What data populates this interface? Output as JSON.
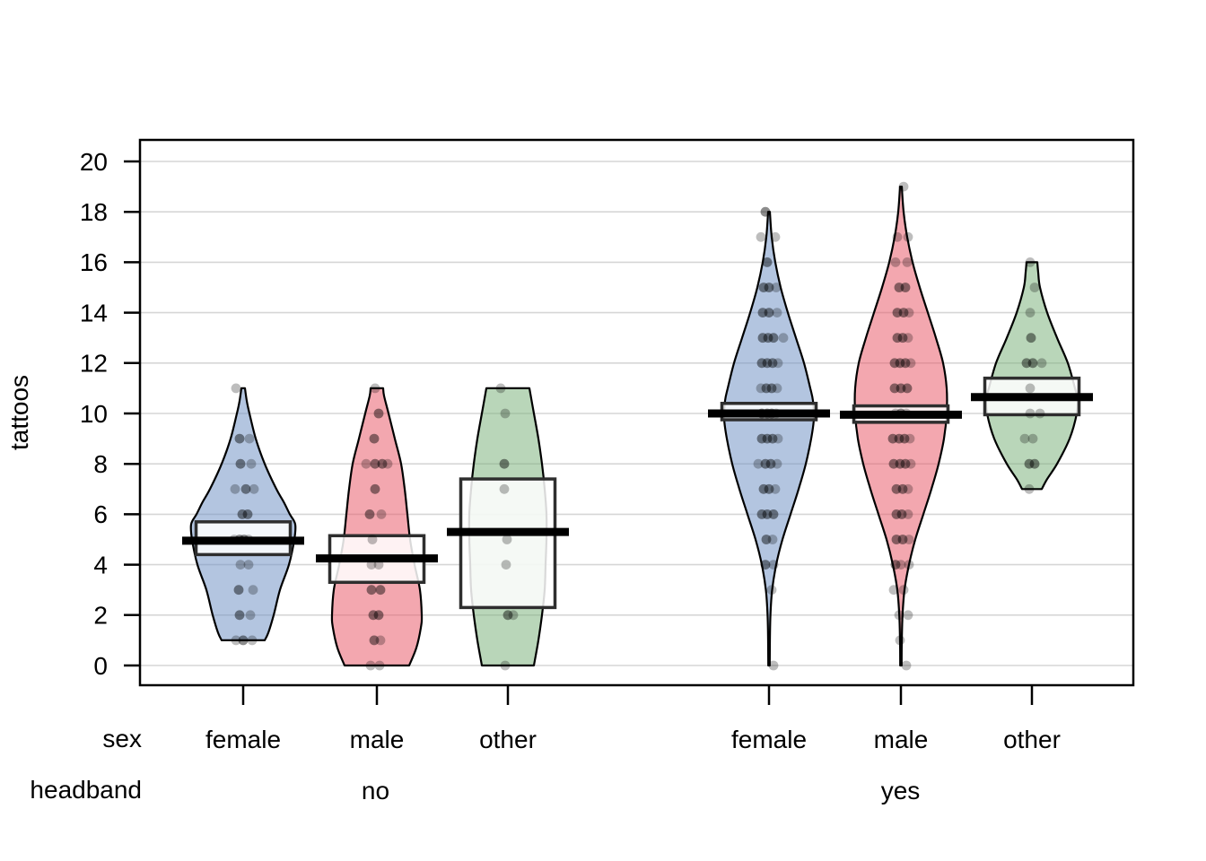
{
  "ylabel": "tattoos",
  "x_axis": {
    "row1_label": "sex",
    "row2_label": "headband",
    "group_labels": [
      "no",
      "yes"
    ]
  },
  "axis": {
    "ylim": [
      0,
      20
    ],
    "yticks": [
      0,
      2,
      4,
      6,
      8,
      10,
      12,
      14,
      16,
      18,
      20
    ],
    "grid": true
  },
  "colors": {
    "blue": "#7496c6",
    "red": "#ea5f6d",
    "green": "#7fb47f",
    "violin_fill_opacity": 0.55,
    "gridline": "#d6d6d6",
    "box_fill": "#ffffff",
    "box_fill_opacity": 0.85,
    "box_border": "#2e2e2e",
    "mean_line": "#000000",
    "point": "#000000",
    "axis": "#000000"
  },
  "chart_data": {
    "type": "violin",
    "subtype": "pirateplot: violin + jittered points + inference box + mean line",
    "title": "",
    "ylabel": "tattoos",
    "ylim": [
      0,
      20
    ],
    "yticks": [
      0,
      2,
      4,
      6,
      8,
      10,
      12,
      14,
      16,
      18,
      20
    ],
    "facet_rows": [
      "sex",
      "headband"
    ],
    "legend": "none",
    "groups": [
      {
        "headband": "no",
        "sex": "female",
        "color_key": "blue",
        "mean": 4.95,
        "inference_box": [
          4.4,
          5.7
        ],
        "data_range": [
          1,
          11
        ],
        "violin_profile": [
          [
            1,
            24
          ],
          [
            1.3,
            28
          ],
          [
            2,
            34
          ],
          [
            3,
            41
          ],
          [
            4,
            51
          ],
          [
            5,
            57
          ],
          [
            5.6,
            58
          ],
          [
            6,
            52
          ],
          [
            6.5,
            45
          ],
          [
            7,
            37
          ],
          [
            8,
            24
          ],
          [
            9,
            14
          ],
          [
            10,
            7
          ],
          [
            10.5,
            4
          ],
          [
            11,
            2
          ]
        ],
        "points": [
          [
            11,
            -8,
            1
          ],
          [
            9,
            -4,
            2
          ],
          [
            9,
            7,
            1
          ],
          [
            8,
            -3,
            2
          ],
          [
            8,
            9,
            1
          ],
          [
            7,
            -9,
            1
          ],
          [
            7,
            3,
            2
          ],
          [
            7,
            12,
            1
          ],
          [
            6,
            -1,
            2
          ],
          [
            6,
            5,
            2
          ],
          [
            5,
            -10,
            1
          ],
          [
            5,
            -4,
            2
          ],
          [
            5,
            1,
            2
          ],
          [
            5,
            6,
            1
          ],
          [
            4,
            -3,
            1
          ],
          [
            4,
            6,
            1
          ],
          [
            3,
            -5,
            2
          ],
          [
            3,
            11,
            1
          ],
          [
            2,
            -4,
            2
          ],
          [
            2,
            8,
            1
          ],
          [
            1,
            -8,
            1
          ],
          [
            1,
            0,
            2
          ],
          [
            1,
            10,
            1
          ]
        ]
      },
      {
        "headband": "no",
        "sex": "male",
        "color_key": "red",
        "mean": 4.25,
        "inference_box": [
          3.3,
          5.15
        ],
        "data_range": [
          0,
          11
        ],
        "violin_profile": [
          [
            0,
            36
          ],
          [
            0.7,
            44
          ],
          [
            1.5,
            49
          ],
          [
            2,
            50
          ],
          [
            3,
            48
          ],
          [
            4,
            42
          ],
          [
            5,
            37
          ],
          [
            6,
            34
          ],
          [
            7,
            31
          ],
          [
            8,
            27
          ],
          [
            9,
            20
          ],
          [
            10,
            13
          ],
          [
            10.7,
            8
          ],
          [
            11,
            7
          ]
        ],
        "points": [
          [
            11,
            -2,
            1
          ],
          [
            10,
            2,
            2
          ],
          [
            9,
            -3,
            2
          ],
          [
            8,
            -12,
            1
          ],
          [
            8,
            -2,
            2
          ],
          [
            8,
            6,
            2
          ],
          [
            8,
            12,
            1
          ],
          [
            7,
            -2,
            2
          ],
          [
            6,
            -8,
            2
          ],
          [
            6,
            5,
            1
          ],
          [
            5,
            -5,
            1
          ],
          [
            4,
            -6,
            1
          ],
          [
            4,
            2,
            1
          ],
          [
            3,
            -6,
            2
          ],
          [
            3,
            4,
            2
          ],
          [
            2,
            -4,
            2
          ],
          [
            2,
            2,
            2
          ],
          [
            1,
            -3,
            2
          ],
          [
            1,
            4,
            1
          ],
          [
            0,
            -7,
            1
          ],
          [
            0,
            3,
            1
          ]
        ]
      },
      {
        "headband": "no",
        "sex": "other",
        "color_key": "green",
        "mean": 5.3,
        "inference_box": [
          2.3,
          7.4
        ],
        "data_range": [
          0,
          11
        ],
        "violin_profile": [
          [
            0,
            29
          ],
          [
            1,
            34
          ],
          [
            2,
            38
          ],
          [
            3,
            41
          ],
          [
            4,
            42
          ],
          [
            5,
            43
          ],
          [
            6,
            43
          ],
          [
            7,
            41
          ],
          [
            8,
            38
          ],
          [
            9,
            34
          ],
          [
            10,
            29
          ],
          [
            11,
            24
          ]
        ],
        "points": [
          [
            11,
            -8,
            1
          ],
          [
            10,
            -3,
            1
          ],
          [
            8,
            -4,
            2
          ],
          [
            7,
            -4,
            1
          ],
          [
            5,
            -1,
            1
          ],
          [
            4,
            -2,
            1
          ],
          [
            2,
            0,
            2
          ],
          [
            2,
            6,
            1
          ],
          [
            0,
            -3,
            1
          ]
        ]
      },
      {
        "headband": "yes",
        "sex": "female",
        "color_key": "blue",
        "mean": 10.0,
        "inference_box": [
          9.75,
          10.4
        ],
        "data_range": [
          0,
          18
        ],
        "violin_profile": [
          [
            0,
            0.8
          ],
          [
            1,
            1
          ],
          [
            2,
            1.6
          ],
          [
            3,
            3.5
          ],
          [
            4,
            8
          ],
          [
            5,
            15
          ],
          [
            6,
            24
          ],
          [
            7,
            33
          ],
          [
            8,
            41
          ],
          [
            9,
            47
          ],
          [
            9.8,
            50
          ],
          [
            10.5,
            49
          ],
          [
            11,
            46
          ],
          [
            12,
            39
          ],
          [
            13,
            30
          ],
          [
            14,
            21
          ],
          [
            15,
            13
          ],
          [
            16,
            7
          ],
          [
            17,
            3
          ],
          [
            18,
            1
          ]
        ],
        "points": [
          [
            18,
            -4,
            2
          ],
          [
            17,
            -9,
            1
          ],
          [
            17,
            7,
            1
          ],
          [
            16,
            -2,
            2
          ],
          [
            15,
            -6,
            2
          ],
          [
            15,
            0,
            2
          ],
          [
            15,
            8,
            1
          ],
          [
            14,
            -7,
            2
          ],
          [
            14,
            0,
            2
          ],
          [
            14,
            9,
            1
          ],
          [
            13,
            -7,
            2
          ],
          [
            13,
            -1,
            2
          ],
          [
            13,
            5,
            2
          ],
          [
            13,
            16,
            1
          ],
          [
            12,
            -8,
            2
          ],
          [
            12,
            -2,
            2
          ],
          [
            12,
            4,
            2
          ],
          [
            12,
            10,
            1
          ],
          [
            11,
            -9,
            1
          ],
          [
            11,
            -3,
            2
          ],
          [
            11,
            3,
            2
          ],
          [
            11,
            9,
            1
          ],
          [
            10,
            -8,
            2
          ],
          [
            10,
            -2,
            2
          ],
          [
            10,
            3,
            2
          ],
          [
            10,
            8,
            1
          ],
          [
            9,
            -8,
            2
          ],
          [
            9,
            -2,
            2
          ],
          [
            9,
            4,
            2
          ],
          [
            9,
            10,
            1
          ],
          [
            8,
            -12,
            1
          ],
          [
            8,
            -4,
            2
          ],
          [
            8,
            2,
            2
          ],
          [
            8,
            9,
            1
          ],
          [
            7,
            -6,
            2
          ],
          [
            7,
            0,
            2
          ],
          [
            7,
            7,
            1
          ],
          [
            6,
            -8,
            2
          ],
          [
            6,
            -2,
            2
          ],
          [
            6,
            5,
            2
          ],
          [
            5,
            -3,
            2
          ],
          [
            5,
            4,
            1
          ],
          [
            4,
            -4,
            2
          ],
          [
            4,
            5,
            1
          ],
          [
            3,
            3,
            1
          ],
          [
            0,
            5,
            1
          ]
        ]
      },
      {
        "headband": "yes",
        "sex": "male",
        "color_key": "red",
        "mean": 9.95,
        "inference_box": [
          9.65,
          10.3
        ],
        "data_range": [
          0,
          19
        ],
        "violin_profile": [
          [
            0,
            0.8
          ],
          [
            1,
            1
          ],
          [
            2,
            1.8
          ],
          [
            3,
            4
          ],
          [
            4,
            9
          ],
          [
            5,
            16
          ],
          [
            6,
            25
          ],
          [
            7,
            34
          ],
          [
            8,
            42
          ],
          [
            9,
            48
          ],
          [
            10,
            51
          ],
          [
            11,
            51
          ],
          [
            12,
            47
          ],
          [
            13,
            39
          ],
          [
            14,
            30
          ],
          [
            15,
            21
          ],
          [
            16,
            13
          ],
          [
            17,
            7
          ],
          [
            18,
            3
          ],
          [
            19,
            1
          ]
        ],
        "points": [
          [
            19,
            3,
            1
          ],
          [
            17,
            -4,
            1
          ],
          [
            17,
            8,
            1
          ],
          [
            16,
            -6,
            1
          ],
          [
            16,
            7,
            1
          ],
          [
            15,
            -2,
            2
          ],
          [
            15,
            5,
            2
          ],
          [
            14,
            -4,
            2
          ],
          [
            14,
            3,
            2
          ],
          [
            14,
            9,
            1
          ],
          [
            13,
            -4,
            2
          ],
          [
            13,
            2,
            2
          ],
          [
            13,
            8,
            1
          ],
          [
            12,
            -7,
            2
          ],
          [
            12,
            -1,
            2
          ],
          [
            12,
            5,
            2
          ],
          [
            12,
            11,
            1
          ],
          [
            11,
            -7,
            2
          ],
          [
            11,
            0,
            2
          ],
          [
            11,
            7,
            2
          ],
          [
            10,
            -6,
            1
          ],
          [
            10,
            0,
            2
          ],
          [
            10,
            6,
            1
          ],
          [
            9,
            -9,
            2
          ],
          [
            9,
            -2,
            2
          ],
          [
            9,
            4,
            2
          ],
          [
            9,
            10,
            1
          ],
          [
            8,
            -8,
            2
          ],
          [
            8,
            -1,
            2
          ],
          [
            8,
            5,
            2
          ],
          [
            8,
            11,
            1
          ],
          [
            7,
            -5,
            2
          ],
          [
            7,
            2,
            2
          ],
          [
            7,
            8,
            1
          ],
          [
            6,
            -5,
            2
          ],
          [
            6,
            1,
            2
          ],
          [
            6,
            8,
            1
          ],
          [
            5,
            -5,
            2
          ],
          [
            5,
            2,
            2
          ],
          [
            5,
            9,
            1
          ],
          [
            4,
            -6,
            2
          ],
          [
            4,
            0,
            1
          ],
          [
            4,
            9,
            1
          ],
          [
            3,
            -8,
            1
          ],
          [
            3,
            3,
            1
          ],
          [
            2,
            -2,
            1
          ],
          [
            2,
            8,
            1
          ],
          [
            1,
            -1,
            1
          ],
          [
            0,
            6,
            1
          ]
        ]
      },
      {
        "headband": "yes",
        "sex": "other",
        "color_key": "green",
        "mean": 10.65,
        "inference_box": [
          9.95,
          11.4
        ],
        "data_range": [
          7,
          16
        ],
        "violin_profile": [
          [
            7,
            11
          ],
          [
            7.4,
            17
          ],
          [
            8,
            28
          ],
          [
            9,
            42
          ],
          [
            10,
            50
          ],
          [
            10.6,
            51
          ],
          [
            11,
            48
          ],
          [
            12,
            40
          ],
          [
            13,
            28
          ],
          [
            14,
            17
          ],
          [
            15,
            9
          ],
          [
            15.6,
            7
          ],
          [
            16,
            6
          ]
        ],
        "points": [
          [
            16,
            -2,
            1
          ],
          [
            15,
            3,
            1
          ],
          [
            14,
            -2,
            1
          ],
          [
            13,
            -1,
            2
          ],
          [
            12,
            -6,
            2
          ],
          [
            12,
            1,
            2
          ],
          [
            12,
            11,
            1
          ],
          [
            11,
            -2,
            1
          ],
          [
            10,
            -2,
            1
          ],
          [
            10,
            9,
            1
          ],
          [
            9,
            -8,
            1
          ],
          [
            9,
            1,
            1
          ],
          [
            8,
            -3,
            2
          ],
          [
            8,
            3,
            2
          ],
          [
            7,
            -3,
            1
          ]
        ]
      }
    ]
  }
}
